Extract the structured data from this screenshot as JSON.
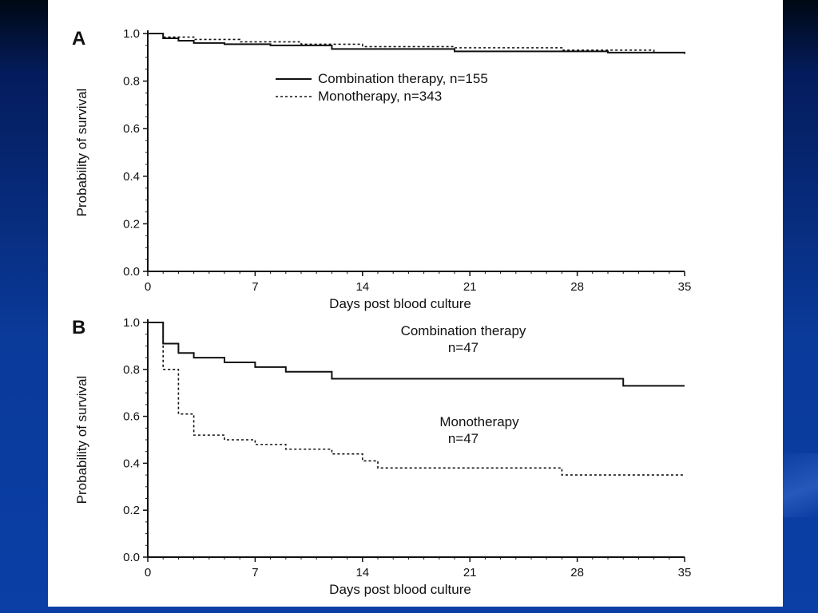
{
  "slide": {
    "background_colors": [
      "#000814",
      "#0b3fa6"
    ]
  },
  "chart_data": [
    {
      "type": "line",
      "panel_label": "A",
      "title": "",
      "xlabel": "Days post blood culture",
      "ylabel": "Probability of survival",
      "xlim": [
        0,
        35
      ],
      "ylim": [
        0.0,
        1.0
      ],
      "x_ticks": [
        "0",
        "7",
        "14",
        "21",
        "28",
        "35"
      ],
      "y_ticks": [
        "0.0",
        "0.2",
        "0.4",
        "0.6",
        "0.8",
        "1.0"
      ],
      "legend": {
        "placement": "top-center",
        "entries": [
          "Combination therapy,   n=155",
          "Monotherapy, n=343"
        ]
      },
      "series": [
        {
          "name": "Combination therapy,   n=155",
          "style": "solid",
          "x": [
            0,
            1,
            2,
            3,
            5,
            8,
            12,
            20,
            30,
            35
          ],
          "y": [
            1.0,
            0.98,
            0.97,
            0.96,
            0.955,
            0.95,
            0.935,
            0.925,
            0.92,
            0.915
          ]
        },
        {
          "name": "Monotherapy, n=343",
          "style": "dashed",
          "x": [
            0,
            1,
            3,
            6,
            10,
            14,
            20,
            27,
            33,
            35
          ],
          "y": [
            1.0,
            0.985,
            0.975,
            0.965,
            0.955,
            0.945,
            0.94,
            0.93,
            0.92,
            0.915
          ]
        }
      ]
    },
    {
      "type": "line",
      "panel_label": "B",
      "title": "",
      "xlabel": "Days post blood culture",
      "ylabel": "Probability of survival",
      "xlim": [
        0,
        35
      ],
      "ylim": [
        0.0,
        1.0
      ],
      "x_ticks": [
        "0",
        "7",
        "14",
        "21",
        "28",
        "35"
      ],
      "y_ticks": [
        "0.0",
        "0.2",
        "0.4",
        "0.6",
        "0.8",
        "1.0"
      ],
      "annotations": [
        {
          "text": "Combination therapy",
          "target": "combination"
        },
        {
          "text": "n=47",
          "target": "combination"
        },
        {
          "text": "Monotherapy",
          "target": "monotherapy"
        },
        {
          "text": "n=47",
          "target": "monotherapy"
        }
      ],
      "series": [
        {
          "name": "Combination therapy",
          "style": "solid",
          "x": [
            0,
            1,
            2,
            3,
            5,
            7,
            9,
            12,
            31,
            35
          ],
          "y": [
            1.0,
            0.91,
            0.87,
            0.85,
            0.83,
            0.81,
            0.79,
            0.76,
            0.73,
            0.73
          ]
        },
        {
          "name": "Monotherapy",
          "style": "dashed",
          "x": [
            0,
            1,
            2,
            3,
            5,
            7,
            9,
            12,
            14,
            15,
            27,
            35
          ],
          "y": [
            1.0,
            0.8,
            0.61,
            0.52,
            0.5,
            0.48,
            0.46,
            0.44,
            0.41,
            0.38,
            0.35,
            0.35
          ]
        }
      ]
    }
  ]
}
